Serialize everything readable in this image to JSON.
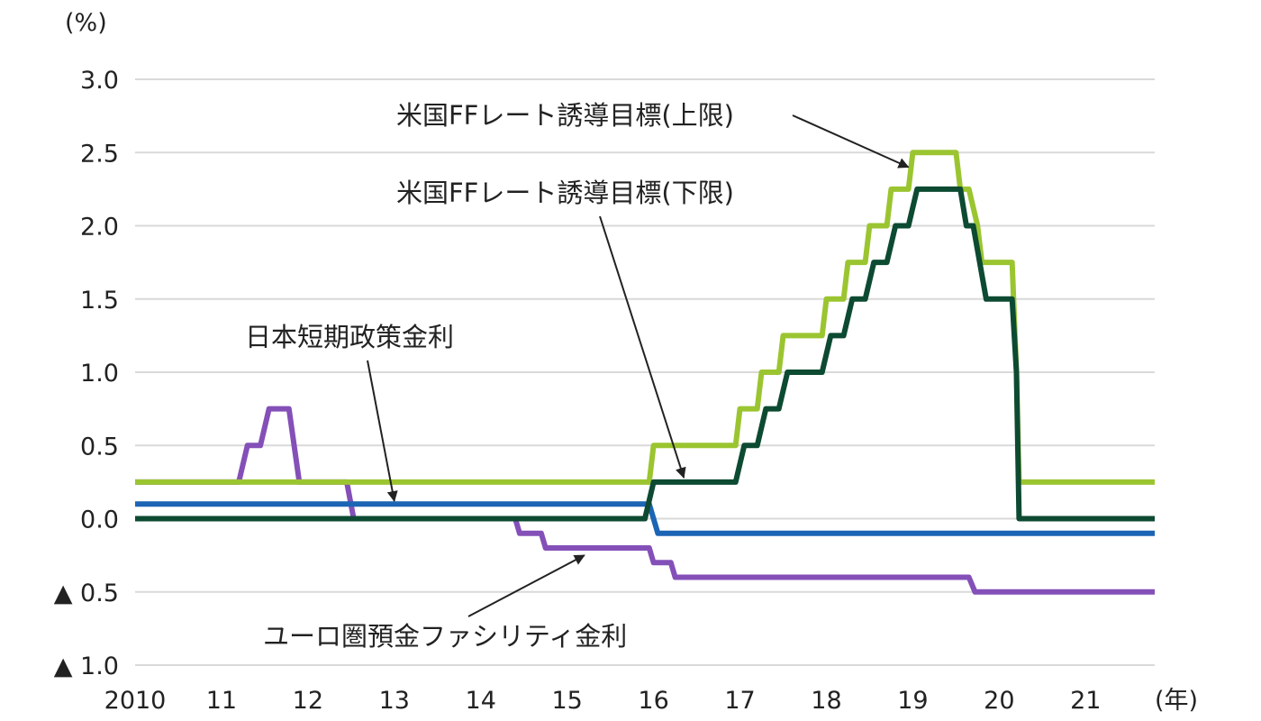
{
  "chart_data": {
    "type": "line",
    "y_unit": "(%)",
    "x_unit": "(年)",
    "xlim": [
      2010,
      2021.8
    ],
    "ylim": [
      -1.0,
      3.0
    ],
    "grid": true,
    "x_ticks": [
      {
        "value": 2010,
        "label": "2010"
      },
      {
        "value": 2011,
        "label": "11"
      },
      {
        "value": 2012,
        "label": "12"
      },
      {
        "value": 2013,
        "label": "13"
      },
      {
        "value": 2014,
        "label": "14"
      },
      {
        "value": 2015,
        "label": "15"
      },
      {
        "value": 2016,
        "label": "16"
      },
      {
        "value": 2017,
        "label": "17"
      },
      {
        "value": 2018,
        "label": "18"
      },
      {
        "value": 2019,
        "label": "19"
      },
      {
        "value": 2020,
        "label": "20"
      },
      {
        "value": 2021,
        "label": "21"
      }
    ],
    "y_ticks": [
      {
        "value": 3.0,
        "label": "3.0"
      },
      {
        "value": 2.5,
        "label": "2.5"
      },
      {
        "value": 2.0,
        "label": "2.0"
      },
      {
        "value": 1.5,
        "label": "1.5"
      },
      {
        "value": 1.0,
        "label": "1.0"
      },
      {
        "value": 0.5,
        "label": "0.5"
      },
      {
        "value": 0.0,
        "label": "0.0"
      },
      {
        "value": -0.5,
        "label": "▲ 0.5"
      },
      {
        "value": -1.0,
        "label": "▲ 1.0"
      }
    ],
    "series": [
      {
        "name": "ユーロ圏預金ファシリティ金利",
        "color": "#8450b8",
        "points": [
          [
            2010.0,
            0.25
          ],
          [
            2011.2,
            0.25
          ],
          [
            2011.3,
            0.5
          ],
          [
            2011.45,
            0.5
          ],
          [
            2011.55,
            0.75
          ],
          [
            2011.78,
            0.75
          ],
          [
            2011.9,
            0.25
          ],
          [
            2012.45,
            0.25
          ],
          [
            2012.53,
            0.0
          ],
          [
            2014.4,
            0.0
          ],
          [
            2014.45,
            -0.1
          ],
          [
            2014.7,
            -0.1
          ],
          [
            2014.75,
            -0.2
          ],
          [
            2015.95,
            -0.2
          ],
          [
            2016.0,
            -0.3
          ],
          [
            2016.2,
            -0.3
          ],
          [
            2016.25,
            -0.4
          ],
          [
            2019.65,
            -0.4
          ],
          [
            2019.72,
            -0.5
          ],
          [
            2021.8,
            -0.5
          ]
        ]
      },
      {
        "name": "日本短期政策金利",
        "color": "#1c64b4",
        "points": [
          [
            2010.0,
            0.1
          ],
          [
            2015.95,
            0.1
          ],
          [
            2016.05,
            -0.1
          ],
          [
            2021.8,
            -0.1
          ]
        ]
      },
      {
        "name": "米国FFレート誘導目標(上限)",
        "color": "#9bc530",
        "points": [
          [
            2010.0,
            0.25
          ],
          [
            2015.95,
            0.25
          ],
          [
            2016.0,
            0.5
          ],
          [
            2016.95,
            0.5
          ],
          [
            2017.0,
            0.75
          ],
          [
            2017.2,
            0.75
          ],
          [
            2017.25,
            1.0
          ],
          [
            2017.45,
            1.0
          ],
          [
            2017.5,
            1.25
          ],
          [
            2017.95,
            1.25
          ],
          [
            2018.0,
            1.5
          ],
          [
            2018.2,
            1.5
          ],
          [
            2018.25,
            1.75
          ],
          [
            2018.45,
            1.75
          ],
          [
            2018.5,
            2.0
          ],
          [
            2018.7,
            2.0
          ],
          [
            2018.75,
            2.25
          ],
          [
            2018.95,
            2.25
          ],
          [
            2019.0,
            2.5
          ],
          [
            2019.5,
            2.5
          ],
          [
            2019.55,
            2.25
          ],
          [
            2019.65,
            2.25
          ],
          [
            2019.75,
            2.0
          ],
          [
            2019.8,
            1.75
          ],
          [
            2020.15,
            1.75
          ],
          [
            2020.2,
            1.0
          ],
          [
            2020.23,
            0.25
          ],
          [
            2021.8,
            0.25
          ]
        ]
      },
      {
        "name": "米国FFレート誘導目標(下限)",
        "color": "#0d4a32",
        "points": [
          [
            2010.0,
            0.0
          ],
          [
            2015.9,
            0.0
          ],
          [
            2016.0,
            0.25
          ],
          [
            2016.95,
            0.25
          ],
          [
            2017.05,
            0.5
          ],
          [
            2017.2,
            0.5
          ],
          [
            2017.3,
            0.75
          ],
          [
            2017.45,
            0.75
          ],
          [
            2017.55,
            1.0
          ],
          [
            2017.95,
            1.0
          ],
          [
            2018.05,
            1.25
          ],
          [
            2018.2,
            1.25
          ],
          [
            2018.3,
            1.5
          ],
          [
            2018.45,
            1.5
          ],
          [
            2018.55,
            1.75
          ],
          [
            2018.7,
            1.75
          ],
          [
            2018.8,
            2.0
          ],
          [
            2018.95,
            2.0
          ],
          [
            2019.05,
            2.25
          ],
          [
            2019.55,
            2.25
          ],
          [
            2019.62,
            2.0
          ],
          [
            2019.7,
            2.0
          ],
          [
            2019.85,
            1.5
          ],
          [
            2020.15,
            1.5
          ],
          [
            2020.2,
            1.0
          ],
          [
            2020.23,
            0.0
          ],
          [
            2021.8,
            0.0
          ]
        ]
      }
    ],
    "annotations": [
      {
        "label": "米国FFレート誘導目標(上限)",
        "series": 2,
        "target": [
          2018.95,
          2.4
        ]
      },
      {
        "label": "米国FFレート誘導目標(下限)",
        "series": 3,
        "target": [
          2016.35,
          0.28
        ]
      },
      {
        "label": "日本短期政策金利",
        "series": 1,
        "target": [
          2013.0,
          0.12
        ]
      },
      {
        "label": "ユーロ圏預金ファシリティ金利",
        "series": 0,
        "target": [
          2015.2,
          -0.25
        ]
      }
    ]
  }
}
